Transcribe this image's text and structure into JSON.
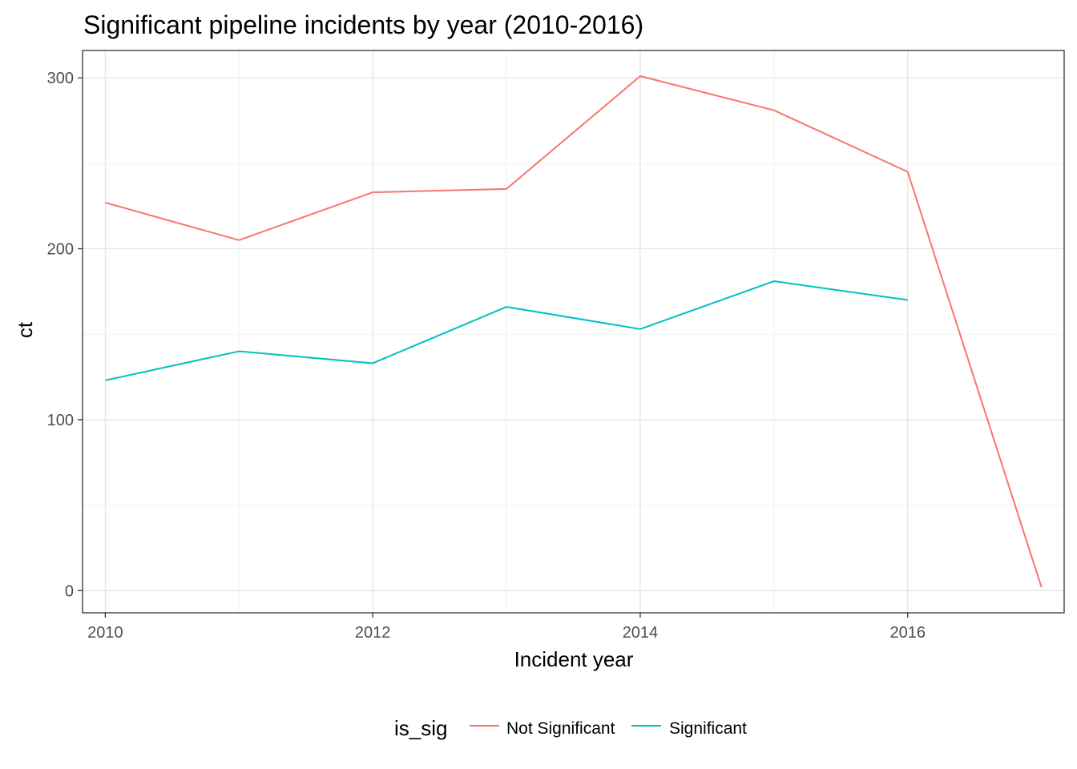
{
  "chart_data": {
    "type": "line",
    "title": "Significant pipeline incidents by year (2010-2016)",
    "xlabel": "Incident year",
    "ylabel": "ct",
    "x_ticks": [
      2010,
      2012,
      2014,
      2016
    ],
    "y_ticks": [
      0,
      100,
      200,
      300
    ],
    "xlim": [
      2009.83,
      2017.17
    ],
    "ylim": [
      -13,
      316
    ],
    "grid": true,
    "legend": {
      "title": "is_sig",
      "position": "bottom"
    },
    "series": [
      {
        "name": "Not Significant",
        "color": "#F8766D",
        "x": [
          2010,
          2011,
          2012,
          2013,
          2014,
          2015,
          2016,
          2017
        ],
        "y": [
          227,
          205,
          233,
          235,
          301,
          281,
          245,
          2
        ]
      },
      {
        "name": "Significant",
        "color": "#00BFC4",
        "x": [
          2010,
          2011,
          2012,
          2013,
          2014,
          2015,
          2016
        ],
        "y": [
          123,
          140,
          133,
          166,
          153,
          181,
          170
        ]
      }
    ]
  }
}
